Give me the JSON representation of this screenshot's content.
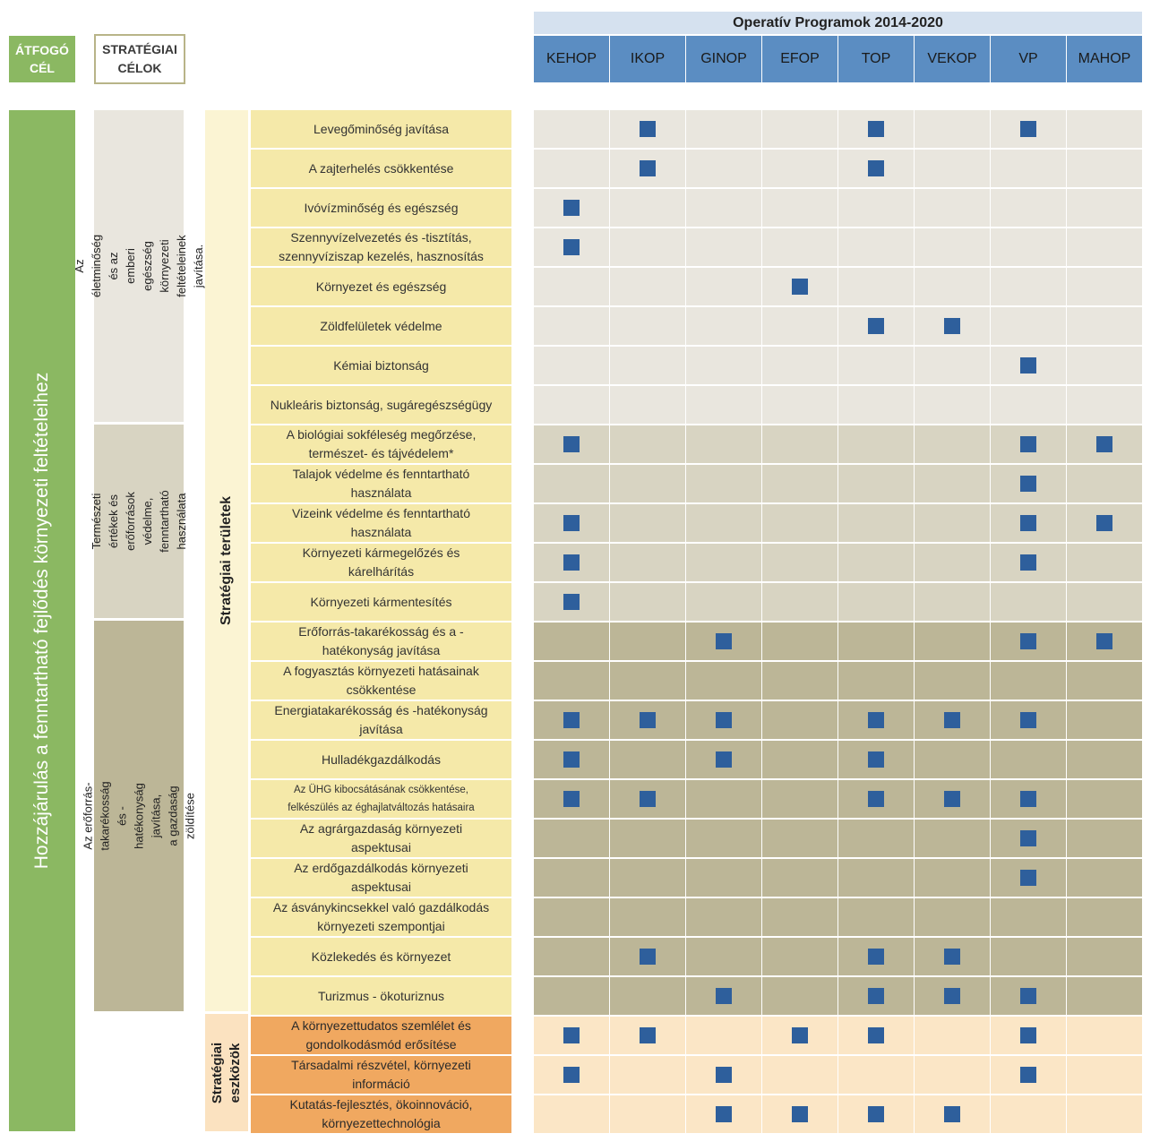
{
  "header": {
    "overall_label": "ÁTFOGÓ\nCÉL",
    "goals_label": "STRATÉGIAI\nCÉLOK",
    "op_title": "Operatív Programok 2014-2020",
    "programs": [
      "KEHOP",
      "IKOP",
      "GINOP",
      "EFOP",
      "TOP",
      "VEKOP",
      "VP",
      "MAHOP"
    ]
  },
  "overall_goal": "Hozzájárulás a fenntartható fejlődés környezeti feltételeihez",
  "strategic_goals": [
    "Az életminőség és az emberi egészség\nkörnyezeti feltételeinek javítása.",
    "Természeti értékek és\nerőforrások védelme,\nfenntartható használata",
    "Az erőforrás-takarékosság és -hatékonyság javítása,\na gazdaság zöldítése"
  ],
  "categories": {
    "areas": "Stratégiai területek",
    "tools": "Stratégiai\neszközök"
  },
  "colors": {
    "goal1_bg": "#e9e6de",
    "goal2_bg": "#d8d4c2",
    "goal3_bg": "#bcb697",
    "tools_bg": "#fbe6c6",
    "item_bg": "#f5e9a9",
    "tool_item_bg": "#f0a860",
    "mark": "#2e5f9c"
  },
  "rows": [
    {
      "label": "Levegőminőség javítása",
      "marks": [
        0,
        1,
        0,
        0,
        1,
        0,
        1,
        0
      ],
      "group": 1
    },
    {
      "label": "A zajterhelés csökkentése",
      "marks": [
        0,
        1,
        0,
        0,
        1,
        0,
        0,
        0
      ],
      "group": 1
    },
    {
      "label": "Ivóvízminőség és egészség",
      "marks": [
        1,
        0,
        0,
        0,
        0,
        0,
        0,
        0
      ],
      "group": 1
    },
    {
      "label": "Szennyvízelvezetés és -tisztítás,\nszennyvíziszap kezelés, hasznosítás",
      "marks": [
        1,
        0,
        0,
        0,
        0,
        0,
        0,
        0
      ],
      "group": 1
    },
    {
      "label": "Környezet és egészség",
      "marks": [
        0,
        0,
        0,
        1,
        0,
        0,
        0,
        0
      ],
      "group": 1
    },
    {
      "label": "Zöldfelületek védelme",
      "marks": [
        0,
        0,
        0,
        0,
        1,
        1,
        0,
        0
      ],
      "group": 1
    },
    {
      "label": "Kémiai biztonság",
      "marks": [
        0,
        0,
        0,
        0,
        0,
        0,
        1,
        0
      ],
      "group": 1
    },
    {
      "label": "Nukleáris biztonság, sugáregészségügy",
      "marks": [
        0,
        0,
        0,
        0,
        0,
        0,
        0,
        0
      ],
      "group": 1
    },
    {
      "label": "A biológiai sokféleség megőrzése,\ntermészet- és tájvédelem*",
      "marks": [
        1,
        0,
        0,
        0,
        0,
        0,
        1,
        1
      ],
      "group": 2
    },
    {
      "label": "Talajok védelme és fenntartható\nhasználata",
      "marks": [
        0,
        0,
        0,
        0,
        0,
        0,
        1,
        0
      ],
      "group": 2
    },
    {
      "label": "Vizeink védelme és fenntartható\nhasználata",
      "marks": [
        1,
        0,
        0,
        0,
        0,
        0,
        1,
        1
      ],
      "group": 2
    },
    {
      "label": "Környezeti kármegelőzés és\nkárelhárítás",
      "marks": [
        1,
        0,
        0,
        0,
        0,
        0,
        1,
        0
      ],
      "group": 2
    },
    {
      "label": "Környezeti kármentesítés",
      "marks": [
        1,
        0,
        0,
        0,
        0,
        0,
        0,
        0
      ],
      "group": 2
    },
    {
      "label": "Erőforrás-takarékosság és a -\nhatékonyság javítása",
      "marks": [
        0,
        0,
        1,
        0,
        0,
        0,
        1,
        1
      ],
      "group": 3
    },
    {
      "label": "A fogyasztás környezeti hatásainak\ncsökkentése",
      "marks": [
        0,
        0,
        0,
        0,
        0,
        0,
        0,
        0
      ],
      "group": 3
    },
    {
      "label": "Energiatakarékosság és -hatékonyság\njavítása",
      "marks": [
        1,
        1,
        1,
        0,
        1,
        1,
        1,
        0
      ],
      "group": 3
    },
    {
      "label": "Hulladékgazdálkodás",
      "marks": [
        1,
        0,
        1,
        0,
        1,
        0,
        0,
        0
      ],
      "group": 3
    },
    {
      "label": "Az ÜHG kibocsátásának csökkentése,\nfelkészülés az éghajlatváltozás hatásaira",
      "marks": [
        1,
        1,
        0,
        0,
        1,
        1,
        1,
        0
      ],
      "group": 3,
      "small": true
    },
    {
      "label": "Az agrárgazdaság környezeti\naspektusai",
      "marks": [
        0,
        0,
        0,
        0,
        0,
        0,
        1,
        0
      ],
      "group": 3
    },
    {
      "label": "Az erdőgazdálkodás környezeti\naspektusai",
      "marks": [
        0,
        0,
        0,
        0,
        0,
        0,
        1,
        0
      ],
      "group": 3
    },
    {
      "label": "Az ásványkincsekkel való gazdálkodás\nkörnyezeti szempontjai",
      "marks": [
        0,
        0,
        0,
        0,
        0,
        0,
        0,
        0
      ],
      "group": 3
    },
    {
      "label": "Közlekedés és környezet",
      "marks": [
        0,
        1,
        0,
        0,
        1,
        1,
        0,
        0
      ],
      "group": 3
    },
    {
      "label": "Turizmus - ökoturiznus",
      "marks": [
        0,
        0,
        1,
        0,
        1,
        1,
        1,
        0
      ],
      "group": 3
    },
    {
      "label": "A környezettudatos szemlélet és\ngondolkodásmód erősítése",
      "marks": [
        1,
        1,
        0,
        1,
        1,
        0,
        1,
        0
      ],
      "group": 4
    },
    {
      "label": "Társadalmi részvétel, környezeti\ninformáció",
      "marks": [
        1,
        0,
        1,
        0,
        0,
        0,
        1,
        0
      ],
      "group": 4
    },
    {
      "label": "Kutatás-fejlesztés, ökoinnováció,\nkörnyezettechnológia",
      "marks": [
        0,
        0,
        1,
        1,
        1,
        1,
        0,
        0
      ],
      "group": 4
    }
  ]
}
